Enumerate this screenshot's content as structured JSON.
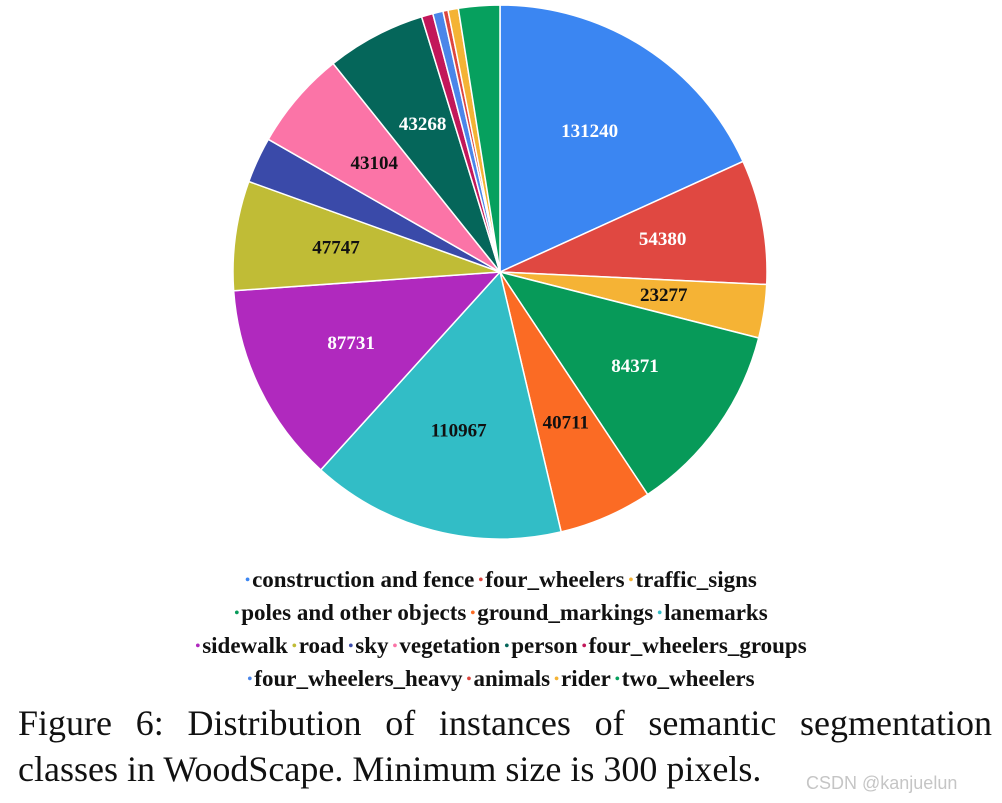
{
  "chart_data": {
    "type": "pie",
    "title": "",
    "slices": [
      {
        "category": "construction and fence",
        "value": 131240,
        "color": "#3b86f2",
        "label": "131240",
        "label_color": "#ffffff"
      },
      {
        "category": "four_wheelers",
        "value": 54380,
        "color": "#e04841",
        "label": "54380",
        "label_color": "#ffffff"
      },
      {
        "category": "traffic_signs",
        "value": 23277,
        "color": "#f5b335",
        "label": "23277",
        "label_color": "#111111"
      },
      {
        "category": "poles and other objects",
        "value": 84371,
        "color": "#079a59",
        "label": "84371",
        "label_color": "#ffffff"
      },
      {
        "category": "ground_markings",
        "value": 40711,
        "color": "#fb6b24",
        "label": "40711",
        "label_color": "#111111"
      },
      {
        "category": "lanemarks",
        "value": 110967,
        "color": "#32bdc6",
        "label": "110967",
        "label_color": "#111111"
      },
      {
        "category": "sidewalk",
        "value": 87731,
        "color": "#b029be",
        "label": "87731",
        "label_color": "#ffffff"
      },
      {
        "category": "road",
        "value": 47747,
        "color": "#c0bc36",
        "label": "47747",
        "label_color": "#111111"
      },
      {
        "category": "sky",
        "value": 20000,
        "color": "#3a4aa9",
        "label": "",
        "label_color": "#ffffff"
      },
      {
        "category": "vegetation",
        "value": 43104,
        "color": "#fb74a7",
        "label": "43104",
        "label_color": "#111111"
      },
      {
        "category": "person",
        "value": 43268,
        "color": "#05665a",
        "label": "43268",
        "label_color": "#ffffff"
      },
      {
        "category": "four_wheelers_groups",
        "value": 5000,
        "color": "#c2175a",
        "label": "",
        "label_color": "#ffffff"
      },
      {
        "category": "four_wheelers_heavy",
        "value": 4500,
        "color": "#4b86e9",
        "label": "",
        "label_color": "#ffffff"
      },
      {
        "category": "animals",
        "value": 2200,
        "color": "#dd463e",
        "label": "",
        "label_color": "#ffffff"
      },
      {
        "category": "rider",
        "value": 4500,
        "color": "#f4b335",
        "label": "",
        "label_color": "#111111"
      },
      {
        "category": "two_wheelers",
        "value": 18000,
        "color": "#06a05e",
        "label": "",
        "label_color": "#ffffff"
      }
    ],
    "legend_position": "bottom"
  },
  "legend_rows": [
    [
      "construction and fence",
      "four_wheelers",
      "traffic_signs"
    ],
    [
      "poles and other objects",
      "ground_markings",
      "lanemarks"
    ],
    [
      "sidewalk",
      "road",
      "sky",
      "vegetation",
      "person",
      "four_wheelers_groups"
    ],
    [
      "four_wheelers_heavy",
      "animals",
      "rider",
      "two_wheelers"
    ]
  ],
  "legend_dot_glyph": "•",
  "caption": "Figure 6: Distribution of instances of semantic segmentation classes in WoodScape. Minimum size is 300 pixels.",
  "watermark": "CSDN @kanjuelun"
}
